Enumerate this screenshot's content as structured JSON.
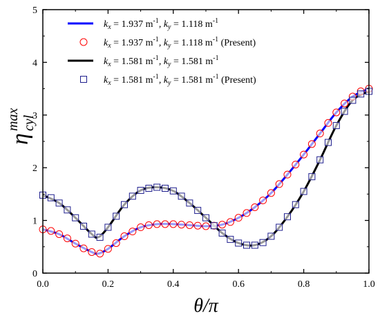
{
  "chart_data": {
    "type": "line",
    "xlabel": "θ/π",
    "ylabel": {
      "base": "η",
      "superscript": "max",
      "subscript": "cyl"
    },
    "xlim": [
      0.0,
      1.0
    ],
    "ylim": [
      0,
      5
    ],
    "xticks": [
      "0.0",
      "0.2",
      "0.4",
      "0.6",
      "0.8",
      "1.0"
    ],
    "yticks": [
      "0",
      "1",
      "2",
      "3",
      "4",
      "5"
    ],
    "grid": false,
    "legend_placement": "top-left",
    "series": [
      {
        "name_parts": [
          "k",
          "x",
          " = 1.937 m",
          "-1",
          ", k",
          "y",
          " = 1.118 m",
          "-1",
          ""
        ],
        "style": "line",
        "color": "#0000ff",
        "x": [
          0.0,
          0.05,
          0.1,
          0.15,
          0.17,
          0.2,
          0.25,
          0.3,
          0.35,
          0.4,
          0.45,
          0.5,
          0.55,
          0.6,
          0.65,
          0.7,
          0.75,
          0.8,
          0.85,
          0.9,
          0.95,
          1.0
        ],
        "y": [
          0.83,
          0.74,
          0.56,
          0.4,
          0.37,
          0.46,
          0.7,
          0.87,
          0.93,
          0.93,
          0.91,
          0.89,
          0.92,
          1.05,
          1.25,
          1.52,
          1.87,
          2.25,
          2.65,
          3.05,
          3.35,
          3.5
        ]
      },
      {
        "name_parts": [
          "k",
          "x",
          " = 1.937 m",
          "-1",
          ", k",
          "y",
          " = 1.118 m",
          "-1",
          " (Present)"
        ],
        "style": "circle",
        "color": "#ff0000",
        "x": [
          0.0,
          0.025,
          0.05,
          0.075,
          0.1,
          0.125,
          0.15,
          0.175,
          0.2,
          0.225,
          0.25,
          0.275,
          0.3,
          0.325,
          0.35,
          0.375,
          0.4,
          0.425,
          0.45,
          0.475,
          0.5,
          0.525,
          0.55,
          0.575,
          0.6,
          0.625,
          0.65,
          0.675,
          0.7,
          0.725,
          0.75,
          0.775,
          0.8,
          0.825,
          0.85,
          0.875,
          0.9,
          0.925,
          0.95,
          0.975,
          1.0
        ],
        "y": [
          0.83,
          0.8,
          0.74,
          0.66,
          0.56,
          0.47,
          0.4,
          0.37,
          0.46,
          0.57,
          0.7,
          0.79,
          0.87,
          0.91,
          0.93,
          0.93,
          0.93,
          0.92,
          0.91,
          0.9,
          0.89,
          0.9,
          0.92,
          0.97,
          1.05,
          1.14,
          1.25,
          1.38,
          1.52,
          1.69,
          1.87,
          2.06,
          2.25,
          2.45,
          2.65,
          2.85,
          3.05,
          3.22,
          3.35,
          3.45,
          3.5
        ]
      },
      {
        "name_parts": [
          "k",
          "x",
          " = 1.581 m",
          "-1",
          ", k",
          "y",
          " = 1.581 m",
          "-1",
          ""
        ],
        "style": "line",
        "color": "#000000",
        "x": [
          0.0,
          0.05,
          0.1,
          0.15,
          0.17,
          0.2,
          0.25,
          0.3,
          0.35,
          0.4,
          0.45,
          0.5,
          0.55,
          0.6,
          0.65,
          0.7,
          0.75,
          0.8,
          0.85,
          0.9,
          0.95,
          1.0
        ],
        "y": [
          1.48,
          1.33,
          1.05,
          0.74,
          0.68,
          0.87,
          1.3,
          1.57,
          1.63,
          1.56,
          1.33,
          1.05,
          0.76,
          0.57,
          0.53,
          0.7,
          1.07,
          1.55,
          2.15,
          2.8,
          3.28,
          3.45
        ]
      },
      {
        "name_parts": [
          "k",
          "x",
          " = 1.581 m",
          "-1",
          ", k",
          "y",
          " = 1.581 m",
          "-1",
          " (Present)"
        ],
        "style": "square",
        "color": "#1c1c8c",
        "x": [
          0.0,
          0.025,
          0.05,
          0.075,
          0.1,
          0.125,
          0.15,
          0.175,
          0.2,
          0.225,
          0.25,
          0.275,
          0.3,
          0.325,
          0.35,
          0.375,
          0.4,
          0.425,
          0.45,
          0.475,
          0.5,
          0.525,
          0.55,
          0.575,
          0.6,
          0.625,
          0.65,
          0.675,
          0.7,
          0.725,
          0.75,
          0.775,
          0.8,
          0.825,
          0.85,
          0.875,
          0.9,
          0.925,
          0.95,
          0.975,
          1.0
        ],
        "y": [
          1.48,
          1.43,
          1.33,
          1.2,
          1.05,
          0.89,
          0.74,
          0.68,
          0.87,
          1.08,
          1.3,
          1.46,
          1.57,
          1.61,
          1.63,
          1.61,
          1.56,
          1.46,
          1.33,
          1.19,
          1.05,
          0.9,
          0.76,
          0.64,
          0.57,
          0.53,
          0.53,
          0.58,
          0.7,
          0.87,
          1.07,
          1.3,
          1.55,
          1.83,
          2.15,
          2.48,
          2.8,
          3.07,
          3.28,
          3.4,
          3.45
        ]
      }
    ]
  }
}
